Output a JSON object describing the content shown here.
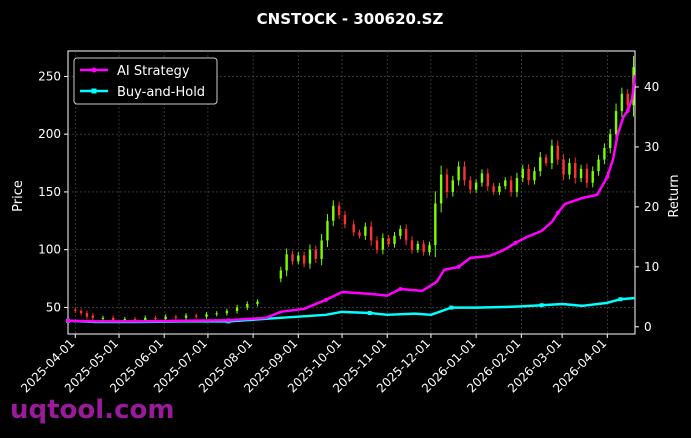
{
  "chart_data": {
    "type": "line",
    "title": "CNSTOCK - 300620.SZ",
    "ylabel_left": "Price",
    "ylabel_right": "Return",
    "y_left_ticks": [
      50,
      100,
      150,
      200,
      250
    ],
    "y_left_range": [
      27,
      272
    ],
    "y_right_ticks": [
      0,
      10,
      20,
      30,
      40
    ],
    "y_right_range": [
      -1.2,
      46
    ],
    "x_ticks": [
      "2025-04-01",
      "2025-05-01",
      "2025-06-01",
      "2025-07-01",
      "2025-08-01",
      "2025-09-01",
      "2025-10-01",
      "2025-11-01",
      "2025-12-01",
      "2026-01-01",
      "2026-02-01",
      "2026-03-01",
      "2026-04-01"
    ],
    "x_range": [
      "2025-03-27",
      "2026-04-20"
    ],
    "grid": true,
    "legend": {
      "position": "top-left",
      "entries": [
        "AI Strategy",
        "Buy-and-Hold"
      ]
    },
    "colors": {
      "ai_strategy": "#ff00ff",
      "buy_and_hold": "#00ffff",
      "candle_up": "#7cfc00",
      "candle_down": "#ff3030",
      "background": "#000000",
      "grid": "#555555"
    },
    "series": [
      {
        "name": "AI Strategy",
        "axis": "right",
        "points": [
          [
            "2025-03-27",
            1.0
          ],
          [
            "2025-04-15",
            0.9
          ],
          [
            "2025-05-15",
            0.9
          ],
          [
            "2025-06-15",
            1.0
          ],
          [
            "2025-07-15",
            1.1
          ],
          [
            "2025-08-10",
            1.5
          ],
          [
            "2025-08-20",
            2.5
          ],
          [
            "2025-09-05",
            3.0
          ],
          [
            "2025-09-20",
            4.5
          ],
          [
            "2025-10-01",
            5.8
          ],
          [
            "2025-10-20",
            5.5
          ],
          [
            "2025-11-01",
            5.2
          ],
          [
            "2025-11-10",
            6.3
          ],
          [
            "2025-11-25",
            6.0
          ],
          [
            "2025-12-05",
            7.5
          ],
          [
            "2025-12-10",
            9.5
          ],
          [
            "2025-12-20",
            10.0
          ],
          [
            "2025-12-28",
            11.5
          ],
          [
            "2026-01-10",
            11.8
          ],
          [
            "2026-01-20",
            12.8
          ],
          [
            "2026-01-28",
            14.0
          ],
          [
            "2026-02-05",
            15.0
          ],
          [
            "2026-02-15",
            16.0
          ],
          [
            "2026-02-22",
            17.5
          ],
          [
            "2026-02-26",
            19.0
          ],
          [
            "2026-03-03",
            20.5
          ],
          [
            "2026-03-15",
            21.5
          ],
          [
            "2026-03-25",
            22.0
          ],
          [
            "2026-04-01",
            25.0
          ],
          [
            "2026-04-05",
            28.0
          ],
          [
            "2026-04-08",
            32.0
          ],
          [
            "2026-04-12",
            35.0
          ],
          [
            "2026-04-15",
            36.0
          ],
          [
            "2026-04-18",
            38.0
          ],
          [
            "2026-04-20",
            42.0
          ]
        ]
      },
      {
        "name": "Buy-and-Hold",
        "axis": "right",
        "points": [
          [
            "2025-03-27",
            1.0
          ],
          [
            "2025-04-15",
            0.8
          ],
          [
            "2025-05-15",
            0.8
          ],
          [
            "2025-06-15",
            0.9
          ],
          [
            "2025-07-15",
            0.9
          ],
          [
            "2025-08-20",
            1.5
          ],
          [
            "2025-09-20",
            2.0
          ],
          [
            "2025-10-01",
            2.5
          ],
          [
            "2025-10-20",
            2.3
          ],
          [
            "2025-11-01",
            2.0
          ],
          [
            "2025-11-20",
            2.2
          ],
          [
            "2025-12-01",
            2.0
          ],
          [
            "2025-12-15",
            3.2
          ],
          [
            "2026-01-01",
            3.2
          ],
          [
            "2026-01-20",
            3.3
          ],
          [
            "2026-02-01",
            3.4
          ],
          [
            "2026-02-15",
            3.6
          ],
          [
            "2026-03-01",
            3.8
          ],
          [
            "2026-03-15",
            3.5
          ],
          [
            "2026-04-01",
            4.0
          ],
          [
            "2026-04-10",
            4.6
          ],
          [
            "2026-04-20",
            4.8
          ]
        ]
      },
      {
        "name": "Price candles",
        "axis": "left",
        "candles": [
          [
            "2025-04-01",
            48,
            47
          ],
          [
            "2025-04-05",
            47,
            45
          ],
          [
            "2025-04-09",
            45,
            42
          ],
          [
            "2025-04-13",
            43,
            41
          ],
          [
            "2025-04-20",
            40,
            41
          ],
          [
            "2025-04-27",
            41,
            39
          ],
          [
            "2025-05-05",
            39,
            40
          ],
          [
            "2025-05-12",
            40,
            39
          ],
          [
            "2025-05-19",
            39,
            41
          ],
          [
            "2025-05-26",
            41,
            40
          ],
          [
            "2025-06-02",
            40,
            42
          ],
          [
            "2025-06-09",
            42,
            41
          ],
          [
            "2025-06-16",
            41,
            43
          ],
          [
            "2025-06-23",
            43,
            42
          ],
          [
            "2025-06-30",
            42,
            44
          ],
          [
            "2025-07-07",
            44,
            45
          ],
          [
            "2025-07-14",
            45,
            47
          ],
          [
            "2025-07-21",
            47,
            50
          ],
          [
            "2025-07-28",
            50,
            53
          ],
          [
            "2025-08-04",
            53,
            55
          ],
          [
            "2025-08-20",
            75,
            82
          ],
          [
            "2025-08-24",
            82,
            96
          ],
          [
            "2025-08-28",
            96,
            90
          ],
          [
            "2025-09-01",
            90,
            95
          ],
          [
            "2025-09-05",
            95,
            88
          ],
          [
            "2025-09-09",
            88,
            100
          ],
          [
            "2025-09-13",
            100,
            92
          ],
          [
            "2025-09-17",
            92,
            108
          ],
          [
            "2025-09-21",
            108,
            125
          ],
          [
            "2025-09-25",
            125,
            138
          ],
          [
            "2025-09-29",
            138,
            130
          ],
          [
            "2025-10-03",
            130,
            122
          ],
          [
            "2025-10-09",
            122,
            115
          ],
          [
            "2025-10-13",
            115,
            112
          ],
          [
            "2025-10-17",
            112,
            120
          ],
          [
            "2025-10-21",
            120,
            108
          ],
          [
            "2025-10-25",
            108,
            100
          ],
          [
            "2025-10-29",
            100,
            110
          ],
          [
            "2025-11-02",
            110,
            105
          ],
          [
            "2025-11-06",
            105,
            112
          ],
          [
            "2025-11-10",
            112,
            118
          ],
          [
            "2025-11-14",
            118,
            108
          ],
          [
            "2025-11-18",
            108,
            100
          ],
          [
            "2025-11-22",
            100,
            105
          ],
          [
            "2025-11-26",
            105,
            98
          ],
          [
            "2025-11-30",
            98,
            104
          ],
          [
            "2025-12-04",
            104,
            140
          ],
          [
            "2025-12-08",
            140,
            165
          ],
          [
            "2025-12-12",
            165,
            150
          ],
          [
            "2025-12-16",
            150,
            160
          ],
          [
            "2025-12-20",
            160,
            172
          ],
          [
            "2025-12-24",
            172,
            160
          ],
          [
            "2025-12-28",
            160,
            152
          ],
          [
            "2026-01-01",
            152,
            158
          ],
          [
            "2026-01-05",
            158,
            166
          ],
          [
            "2026-01-09",
            166,
            155
          ],
          [
            "2026-01-13",
            155,
            150
          ],
          [
            "2026-01-17",
            150,
            155
          ],
          [
            "2026-01-21",
            155,
            160
          ],
          [
            "2026-01-25",
            160,
            150
          ],
          [
            "2026-01-29",
            150,
            162
          ],
          [
            "2026-02-02",
            162,
            170
          ],
          [
            "2026-02-06",
            170,
            160
          ],
          [
            "2026-02-10",
            160,
            168
          ],
          [
            "2026-02-14",
            168,
            180
          ],
          [
            "2026-02-18",
            180,
            175
          ],
          [
            "2026-02-22",
            175,
            190
          ],
          [
            "2026-02-26",
            190,
            178
          ],
          [
            "2026-03-02",
            178,
            165
          ],
          [
            "2026-03-06",
            165,
            175
          ],
          [
            "2026-03-10",
            175,
            162
          ],
          [
            "2026-03-14",
            162,
            170
          ],
          [
            "2026-03-18",
            170,
            158
          ],
          [
            "2026-03-22",
            158,
            168
          ],
          [
            "2026-03-26",
            168,
            178
          ],
          [
            "2026-03-30",
            178,
            188
          ],
          [
            "2026-04-03",
            188,
            200
          ],
          [
            "2026-04-07",
            200,
            220
          ],
          [
            "2026-04-11",
            220,
            235
          ],
          [
            "2026-04-15",
            235,
            225
          ],
          [
            "2026-04-19",
            225,
            258
          ]
        ]
      }
    ]
  },
  "watermark": "uqtool.com"
}
